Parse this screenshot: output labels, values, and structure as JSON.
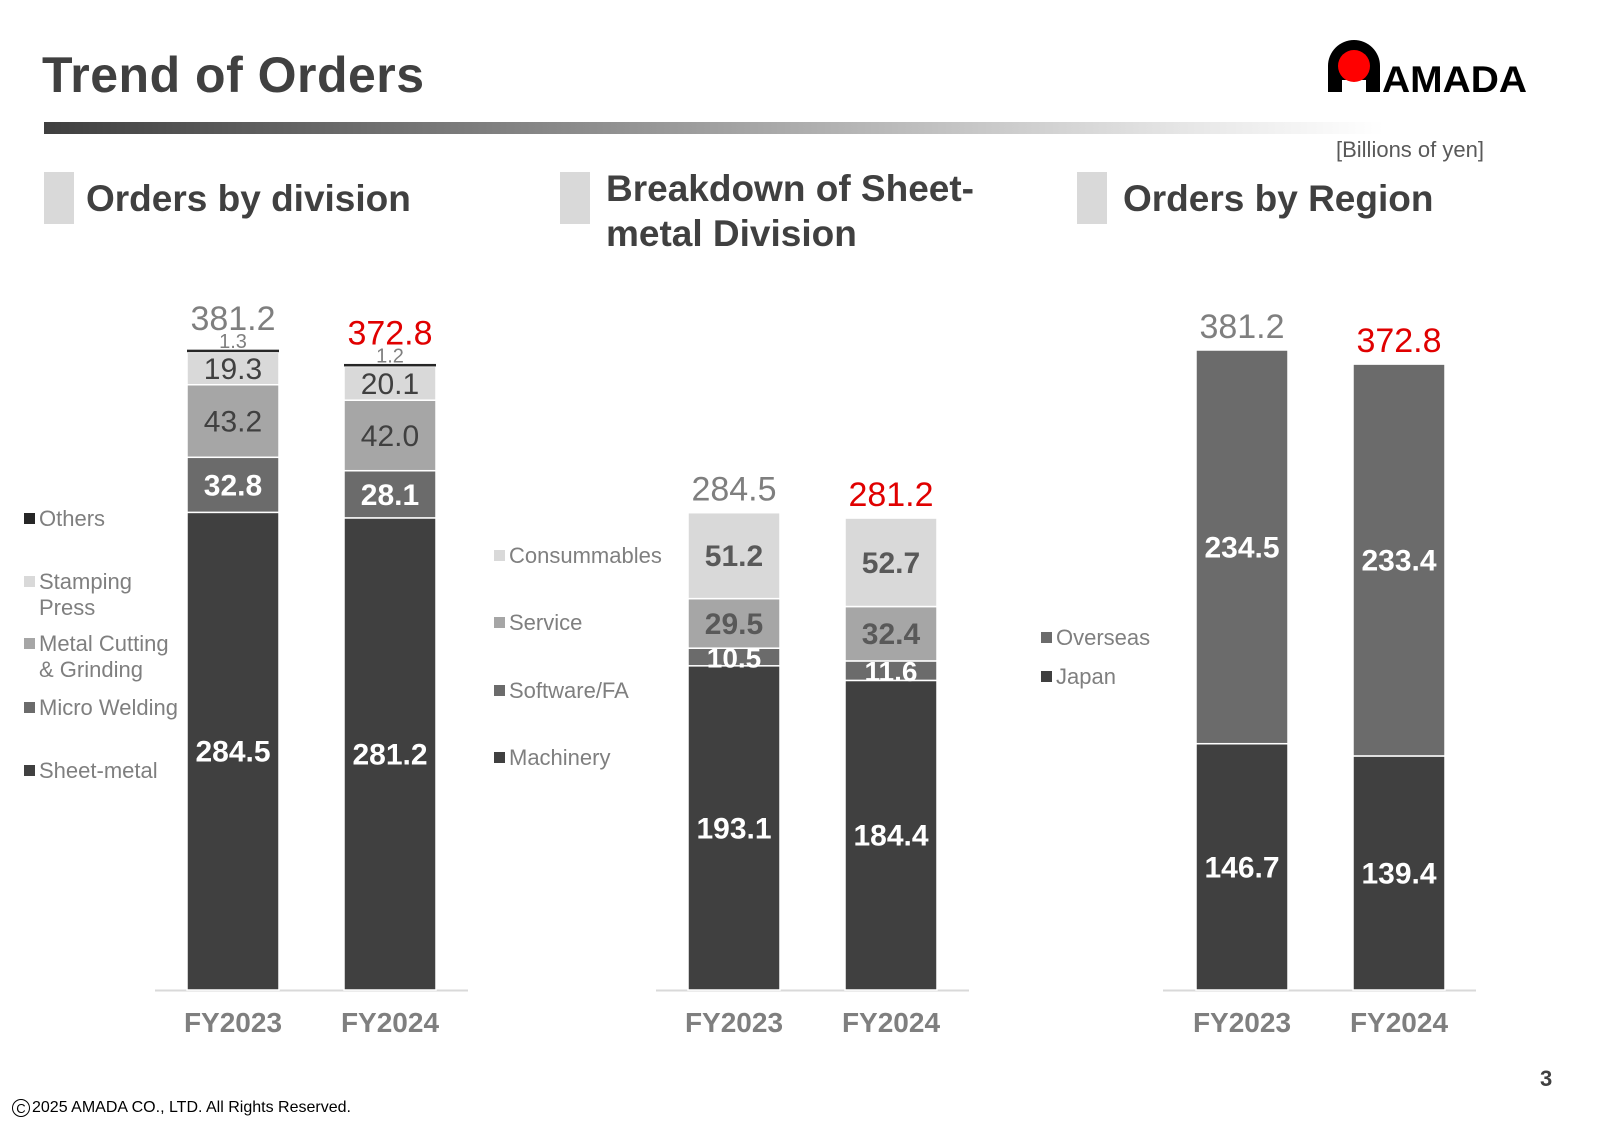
{
  "title": "Trend of Orders",
  "units": "[Billions of yen]",
  "page_number": "3",
  "copyright": "2025 AMADA CO., LTD. All Rights Reserved.",
  "logo": {
    "text": "AMADA",
    "mark_color": "#ff0000"
  },
  "colors": {
    "dark": "#404040",
    "mid": "#6b6b6b",
    "light": "#a6a6a6",
    "lighter": "#d9d9d9",
    "total_current": "#e00000",
    "total_prev": "#7f7f7f"
  },
  "chart_data": [
    {
      "type": "bar",
      "stacked": true,
      "title": "Orders by division",
      "categories": [
        "FY2023",
        "FY2024"
      ],
      "totals": [
        "381.2",
        "372.8"
      ],
      "series": [
        {
          "name": "Sheet-metal",
          "values": [
            284.5,
            281.2
          ],
          "labels": [
            "284.5",
            "281.2"
          ],
          "color": "#404040"
        },
        {
          "name": "Micro Welding",
          "values": [
            32.8,
            28.1
          ],
          "labels": [
            "32.8",
            "28.1"
          ],
          "color": "#6b6b6b"
        },
        {
          "name": "Metal Cutting & Grinding",
          "values": [
            43.2,
            42.0
          ],
          "labels": [
            "43.2",
            "42.0"
          ],
          "color": "#a6a6a6"
        },
        {
          "name": "Stamping Press",
          "values": [
            19.3,
            20.1
          ],
          "labels": [
            "19.3",
            "20.1"
          ],
          "color": "#d9d9d9"
        },
        {
          "name": "Others",
          "values": [
            1.3,
            1.2
          ],
          "labels": [
            "1.3",
            "1.2"
          ],
          "color": "#262626"
        }
      ]
    },
    {
      "type": "bar",
      "stacked": true,
      "title": "Breakdown of Sheet-metal Division",
      "categories": [
        "FY2023",
        "FY2024"
      ],
      "totals": [
        "284.5",
        "281.2"
      ],
      "series": [
        {
          "name": "Machinery",
          "values": [
            193.1,
            184.4
          ],
          "labels": [
            "193.1",
            "184.4"
          ],
          "color": "#404040"
        },
        {
          "name": "Software/FA",
          "values": [
            10.5,
            11.6
          ],
          "labels": [
            "10.5",
            "11.6"
          ],
          "color": "#6b6b6b"
        },
        {
          "name": "Service",
          "values": [
            29.5,
            32.4
          ],
          "labels": [
            "29.5",
            "32.4"
          ],
          "color": "#a6a6a6"
        },
        {
          "name": "Consummables",
          "values": [
            51.2,
            52.7
          ],
          "labels": [
            "51.2",
            "52.7"
          ],
          "color": "#d9d9d9"
        }
      ]
    },
    {
      "type": "bar",
      "stacked": true,
      "title": "Orders by Region",
      "categories": [
        "FY2023",
        "FY2024"
      ],
      "totals": [
        "381.2",
        "372.8"
      ],
      "series": [
        {
          "name": "Japan",
          "values": [
            146.7,
            139.4
          ],
          "labels": [
            "146.7",
            "139.4"
          ],
          "color": "#404040"
        },
        {
          "name": "Overseas",
          "values": [
            234.5,
            233.4
          ],
          "labels": [
            "234.5",
            "233.4"
          ],
          "color": "#6b6b6b"
        }
      ]
    }
  ]
}
